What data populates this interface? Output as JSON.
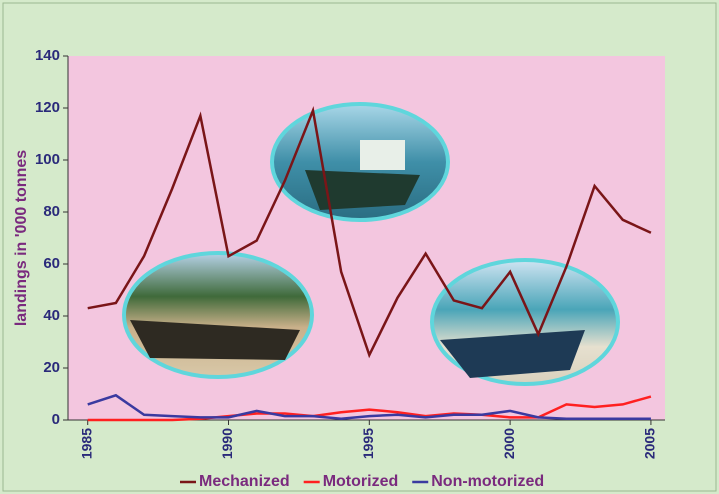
{
  "chart_data": {
    "type": "line",
    "y_label": "landings in '000 tonnes",
    "x": [
      1985,
      1986,
      1987,
      1988,
      1989,
      1990,
      1991,
      1992,
      1993,
      1994,
      1995,
      1996,
      1997,
      1998,
      1999,
      2000,
      2001,
      2002,
      2003,
      2004,
      2005
    ],
    "series": [
      {
        "name": "Mechanized",
        "color": "#7a1518",
        "values": [
          43,
          45,
          63,
          89,
          117,
          63,
          69,
          92,
          119,
          57,
          25,
          47,
          64,
          46,
          43,
          57,
          33,
          59,
          90,
          77,
          72
        ]
      },
      {
        "name": "Motorized",
        "color": "#ff2020",
        "values": [
          0,
          0,
          0,
          0,
          0.5,
          1.5,
          2.5,
          2.5,
          1.5,
          3,
          4,
          3,
          1.5,
          2.5,
          2,
          1,
          1,
          6,
          5,
          6,
          9
        ]
      },
      {
        "name": "Non-motorized",
        "color": "#3a3aa0",
        "values": [
          6,
          9.5,
          2,
          1.5,
          1,
          1,
          3.5,
          1.5,
          1.5,
          0.5,
          1.5,
          2,
          1,
          2,
          2,
          3.5,
          1,
          0.5,
          0.5,
          0.5,
          0.5
        ]
      }
    ],
    "xlim": [
      1984.3,
      2005.5
    ],
    "xticks": [
      1985,
      1990,
      1995,
      2000,
      2005
    ],
    "ylim": [
      0,
      140
    ],
    "yticks": [
      0,
      20,
      40,
      60,
      80,
      100,
      120,
      140
    ]
  }
}
